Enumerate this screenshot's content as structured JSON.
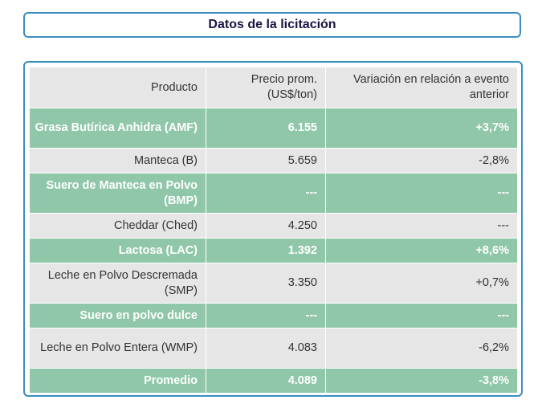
{
  "title": "Datos de la licitación",
  "table": {
    "headers": [
      "Producto",
      "Precio prom. (US$/ton)",
      "Variación en relación a evento anterior"
    ],
    "rows": [
      {
        "product": "Grasa Butírica Anhidra (AMF)",
        "price": "6.155",
        "change": "+3,7%"
      },
      {
        "product": "Manteca (B)",
        "price": "5.659",
        "change": "-2,8%"
      },
      {
        "product": "Suero de Manteca en Polvo (BMP)",
        "price": "---",
        "change": "---"
      },
      {
        "product": "Cheddar (Ched)",
        "price": "4.250",
        "change": "---"
      },
      {
        "product": "Lactosa (LAC)",
        "price": "1.392",
        "change": "+8,6%"
      },
      {
        "product": "Leche en Polvo Descremada (SMP)",
        "price": "3.350",
        "change": "+0,7%"
      },
      {
        "product": "Suero en polvo dulce",
        "price": "---",
        "change": "---"
      },
      {
        "product": "Leche en Polvo Entera (WMP)",
        "price": "4.083",
        "change": "-6,2%"
      },
      {
        "product": "Promedio",
        "price": "4.089",
        "change": "-3,8%"
      }
    ]
  },
  "colors": {
    "border": "#3a8fc0",
    "highlight_row": "#8fc7a8",
    "normal_row": "#e6e6e6",
    "title_text": "#1a1440"
  }
}
